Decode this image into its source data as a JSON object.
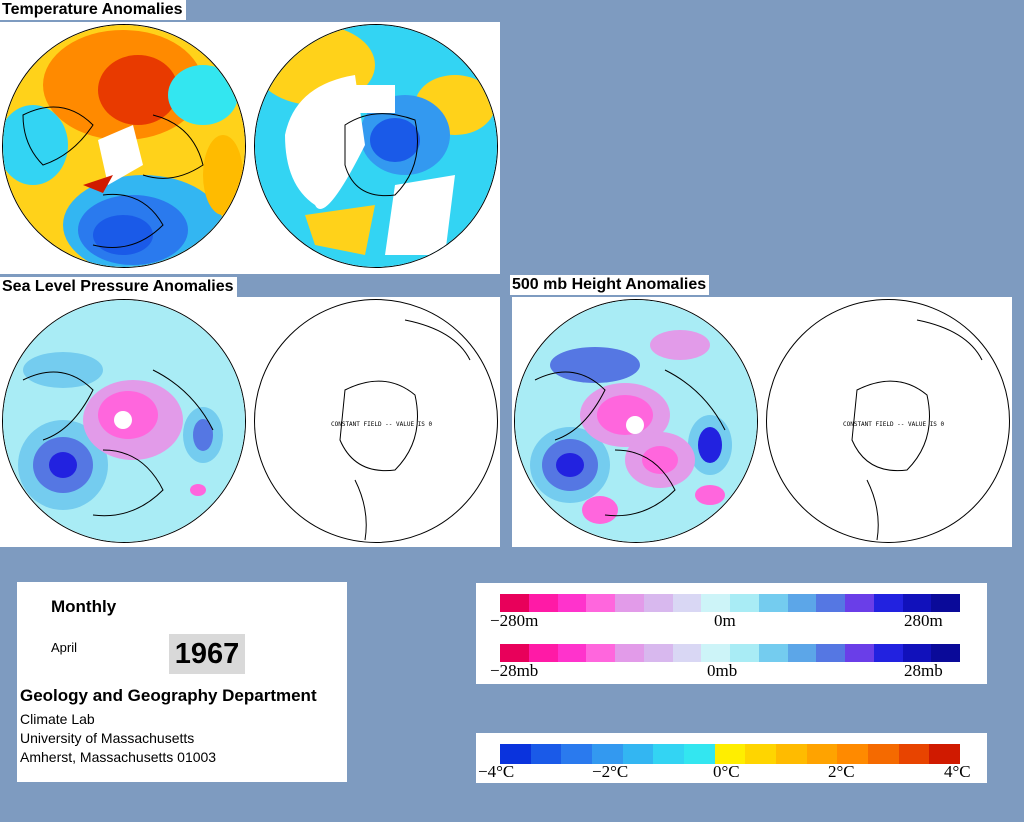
{
  "panels": {
    "temperature": {
      "title": "Temperature Anomalies"
    },
    "slp": {
      "title": "Sea Level Pressure Anomalies",
      "south_label": "CONSTANT FIELD -- VALUE IS 0"
    },
    "height": {
      "title": "500 mb Height Anomalies",
      "south_label": "CONSTANT FIELD -- VALUE IS 0"
    }
  },
  "info": {
    "frequency": "Monthly",
    "month": "April",
    "year": "1967",
    "department": "Geology and Geography Department",
    "lab": "Climate Lab",
    "university": "University of Massachusetts",
    "address": "Amherst, Massachusetts 01003"
  },
  "legends": {
    "height": {
      "colors": [
        "#e8005a",
        "#ff1aa6",
        "#ff33cc",
        "#ff66dd",
        "#e29be9",
        "#d8b8ee",
        "#d9d7f4",
        "#cdf4f8",
        "#a9ecf5",
        "#74ccef",
        "#5ca6e8",
        "#5577e3",
        "#6a3ee8",
        "#2222e0",
        "#1111bb",
        "#0a0a99"
      ],
      "labels": [
        "−280m",
        "0m",
        "280m"
      ]
    },
    "pressure": {
      "colors": [
        "#e8005a",
        "#ff1aa6",
        "#ff33cc",
        "#ff66dd",
        "#e29be9",
        "#d8b8ee",
        "#d9d7f4",
        "#cdf4f8",
        "#a9ecf5",
        "#74ccef",
        "#5ca6e8",
        "#5577e3",
        "#6a3ee8",
        "#2222e0",
        "#1111bb",
        "#0a0a99"
      ],
      "labels": [
        "−28mb",
        "0mb",
        "28mb"
      ]
    },
    "temperature": {
      "colors": [
        "#0a33dd",
        "#1a5ae8",
        "#2a7aee",
        "#3399f0",
        "#33b6f2",
        "#33d4f3",
        "#33e6f0",
        "#ffee00",
        "#ffd500",
        "#ffbb00",
        "#ffa300",
        "#ff8a00",
        "#f56a00",
        "#e84400",
        "#d01a00"
      ],
      "labels": [
        "−4°C",
        "−2°C",
        "0°C",
        "2°C",
        "4°C"
      ]
    }
  }
}
